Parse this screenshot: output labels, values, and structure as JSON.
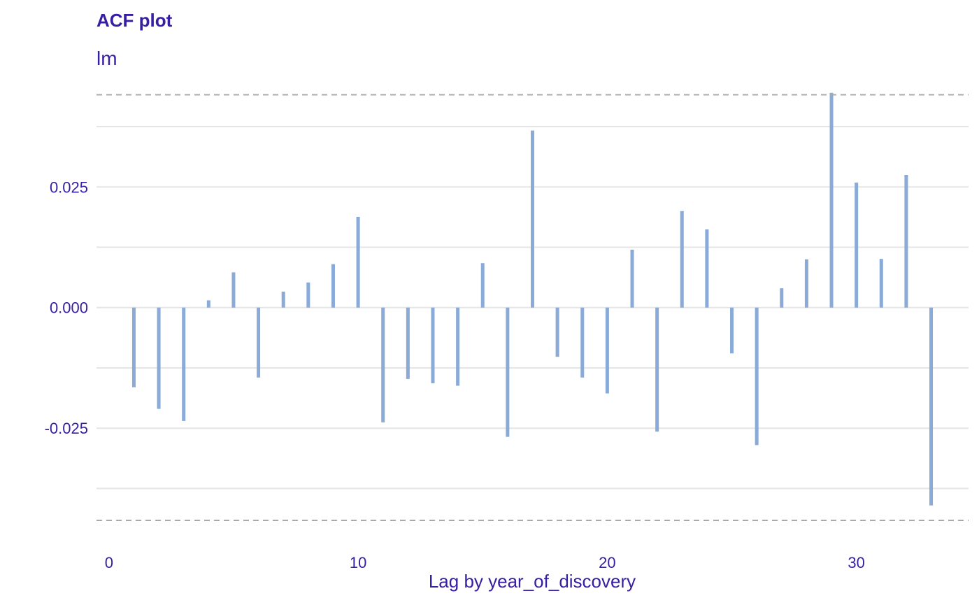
{
  "title": "ACF plot",
  "subtitle": "lm",
  "chart_data": {
    "type": "bar",
    "subtype": "acf-lollipop",
    "xlabel": "Lag by year_of_discovery",
    "ylabel": "",
    "x": [
      1,
      2,
      3,
      4,
      5,
      6,
      7,
      8,
      9,
      10,
      11,
      12,
      13,
      14,
      15,
      16,
      17,
      18,
      19,
      20,
      21,
      22,
      23,
      24,
      25,
      26,
      27,
      28,
      29,
      30,
      31,
      32,
      33
    ],
    "values": [
      -0.0165,
      -0.021,
      -0.0235,
      0.0015,
      0.0073,
      -0.0145,
      0.0033,
      0.0052,
      0.009,
      0.0188,
      -0.0238,
      -0.0148,
      -0.0157,
      -0.0162,
      0.0092,
      -0.0268,
      0.0367,
      -0.0102,
      -0.0145,
      -0.0178,
      0.012,
      -0.0257,
      0.02,
      0.0162,
      -0.0095,
      -0.0285,
      0.004,
      0.01,
      0.0445,
      0.0259,
      0.0101,
      0.0275,
      -0.041
    ],
    "confidence_bound": 0.0441,
    "xlim": [
      -0.5,
      34.5
    ],
    "ylim": [
      -0.0486,
      0.0478
    ],
    "xticks": [
      0,
      10,
      20,
      30
    ],
    "xtick_labels": [
      "0",
      "10",
      "20",
      "30"
    ],
    "yticks": [
      -0.025,
      0,
      0.025
    ],
    "ytick_labels": [
      "-0.025",
      "0.000",
      "0.025"
    ],
    "yminor": [
      -0.0375,
      -0.0125,
      0.0125,
      0.0375
    ],
    "grid": true,
    "colors": {
      "bar": "#8aaad8",
      "text": "#371ea3",
      "grid": "#e5e5e5",
      "bound": "#aaaaaa"
    }
  }
}
